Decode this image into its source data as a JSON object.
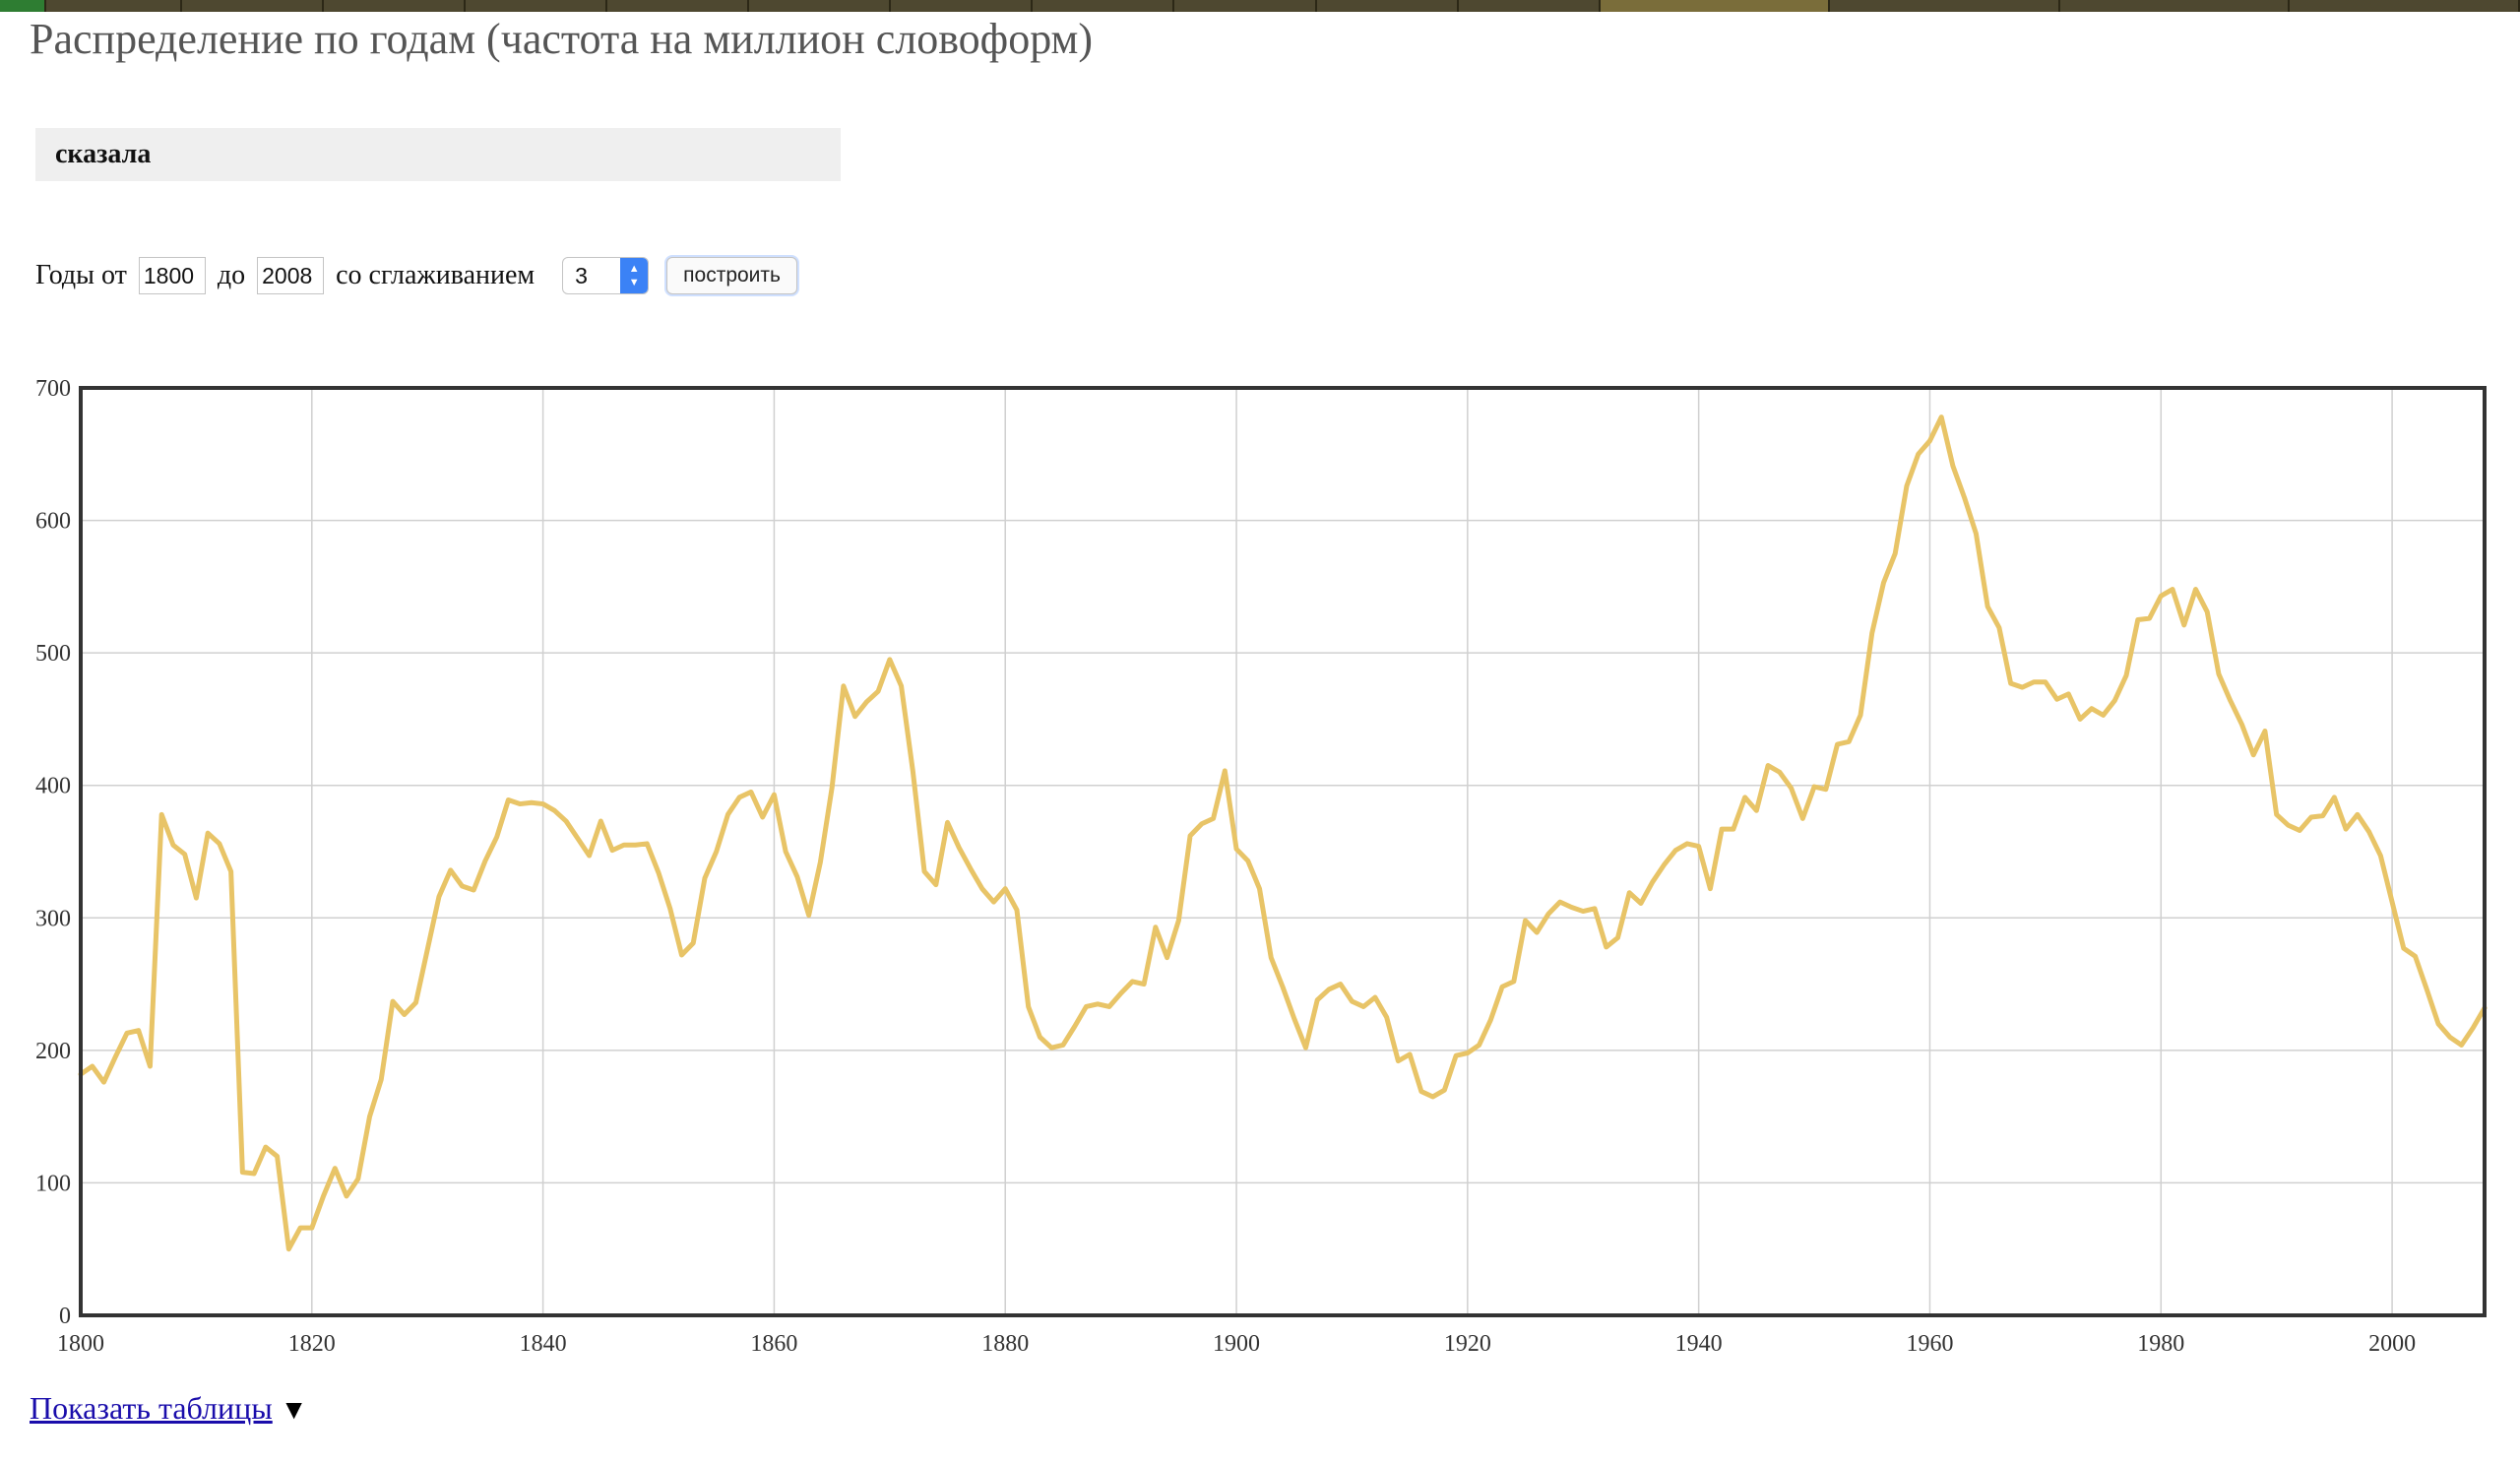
{
  "page": {
    "title": "Распределение по годам (частота на миллион словоформ)",
    "query": "сказала",
    "show_tables": "Показать таблицы"
  },
  "controls": {
    "years_from_label": "Годы от",
    "year_from": "1800",
    "to_label": "до",
    "year_to": "2008",
    "smoothing_label": "со сглаживанием",
    "smoothing_value": "3",
    "build_button": "построить"
  },
  "colors": {
    "line": "#e8c467",
    "grid": "#d0d0d0",
    "frame": "#333333"
  },
  "chart_data": {
    "type": "line",
    "title": "",
    "xlabel": "",
    "ylabel": "",
    "xlim": [
      1800,
      2008
    ],
    "ylim": [
      0,
      700
    ],
    "x_ticks": [
      1800,
      1820,
      1840,
      1860,
      1880,
      1900,
      1920,
      1940,
      1960,
      1980,
      2000
    ],
    "y_ticks": [
      0,
      100,
      200,
      300,
      400,
      500,
      600,
      700
    ],
    "grid": true,
    "legend": "none",
    "series": [
      {
        "x": [
          1800,
          1801,
          1802,
          1803,
          1804,
          1805,
          1806,
          1807,
          1808,
          1809,
          1810,
          1811,
          1812,
          1813,
          1814,
          1815,
          1816,
          1817,
          1818,
          1819,
          1820,
          1821,
          1822,
          1823,
          1824,
          1825,
          1826,
          1827,
          1828,
          1829,
          1830,
          1831,
          1832,
          1833,
          1834,
          1835,
          1836,
          1837,
          1838,
          1839,
          1840,
          1841,
          1842,
          1843,
          1844,
          1845,
          1846,
          1847,
          1848,
          1849,
          1850,
          1851,
          1852,
          1853,
          1854,
          1855,
          1856,
          1857,
          1858,
          1859,
          1860,
          1861,
          1862,
          1863,
          1864,
          1865,
          1866,
          1867,
          1868,
          1869,
          1870,
          1871,
          1872,
          1873,
          1874,
          1875,
          1876,
          1877,
          1878,
          1879,
          1880,
          1881,
          1882,
          1883,
          1884,
          1885,
          1886,
          1887,
          1888,
          1889,
          1890,
          1891,
          1892,
          1893,
          1894,
          1895,
          1896,
          1897,
          1898,
          1899,
          1900,
          1901,
          1902,
          1903,
          1904,
          1905,
          1906,
          1907,
          1908,
          1909,
          1910,
          1911,
          1912,
          1913,
          1914,
          1915,
          1916,
          1917,
          1918,
          1919,
          1920,
          1921,
          1922,
          1923,
          1924,
          1925,
          1926,
          1927,
          1928,
          1929,
          1930,
          1931,
          1932,
          1933,
          1934,
          1935,
          1936,
          1937,
          1938,
          1939,
          1940,
          1941,
          1942,
          1943,
          1944,
          1945,
          1946,
          1947,
          1948,
          1949,
          1950,
          1951,
          1952,
          1953,
          1954,
          1955,
          1956,
          1957,
          1958,
          1959,
          1960,
          1961,
          1962,
          1963,
          1964,
          1965,
          1966,
          1967,
          1968,
          1969,
          1970,
          1971,
          1972,
          1973,
          1974,
          1975,
          1976,
          1977,
          1978,
          1979,
          1980,
          1981,
          1982,
          1983,
          1984,
          1985,
          1986,
          1987,
          1988,
          1989,
          1990,
          1991,
          1992,
          1993,
          1994,
          1995,
          1996,
          1997,
          1998,
          1999,
          2000,
          2001,
          2002,
          2003,
          2004,
          2005,
          2006,
          2007,
          2008
        ],
        "values": [
          182,
          188,
          176,
          195,
          213,
          215,
          188,
          378,
          355,
          348,
          315,
          364,
          356,
          335,
          108,
          107,
          127,
          120,
          50,
          66,
          66,
          90,
          111,
          90,
          103,
          150,
          178,
          237,
          227,
          236,
          276,
          316,
          336,
          324,
          321,
          343,
          361,
          389,
          386,
          387,
          386,
          381,
          373,
          360,
          347,
          373,
          351,
          355,
          355,
          356,
          334,
          307,
          272,
          281,
          330,
          350,
          378,
          391,
          395,
          376,
          393,
          350,
          331,
          302,
          342,
          398,
          475,
          452,
          463,
          471,
          495,
          475,
          411,
          335,
          325,
          372,
          353,
          337,
          322,
          312,
          322,
          306,
          233,
          210,
          202,
          204,
          218,
          233,
          235,
          233,
          243,
          252,
          250,
          293,
          270,
          298,
          362,
          371,
          375,
          411,
          352,
          343,
          322,
          270,
          248,
          224,
          202,
          238,
          246,
          250,
          237,
          233,
          240,
          225,
          192,
          197,
          169,
          165,
          170,
          196,
          198,
          204,
          223,
          248,
          252,
          298,
          289,
          303,
          312,
          308,
          305,
          307,
          278,
          285,
          319,
          311,
          327,
          340,
          351,
          356,
          354,
          322,
          367,
          367,
          391,
          381,
          415,
          410,
          398,
          375,
          399,
          397,
          431,
          433,
          453,
          515,
          553,
          575,
          626,
          650,
          660,
          678,
          641,
          617,
          590,
          535,
          519,
          477,
          474,
          478,
          478,
          465,
          469,
          450,
          458,
          453,
          464,
          483,
          525,
          526,
          543,
          548,
          521,
          548,
          531,
          484,
          464,
          446,
          423,
          441,
          378,
          370,
          366,
          376,
          377,
          391,
          367,
          378,
          365,
          347,
          312,
          277,
          271,
          246,
          220,
          210,
          204,
          217,
          232
        ]
      }
    ]
  }
}
